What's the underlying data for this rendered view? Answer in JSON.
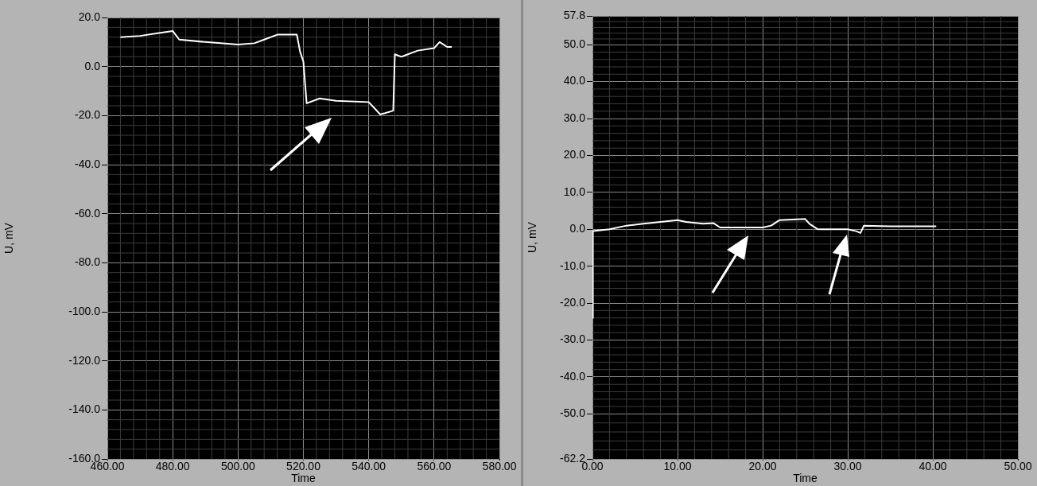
{
  "chart_data": [
    {
      "type": "line",
      "xlabel": "Time",
      "ylabel": "U, mV",
      "grid": true,
      "xlim": [
        460,
        580
      ],
      "ylim": [
        -160,
        20
      ],
      "xticks": [
        {
          "value": 460,
          "label": "460.00"
        },
        {
          "value": 480,
          "label": "480.00"
        },
        {
          "value": 500,
          "label": "500.00"
        },
        {
          "value": 520,
          "label": "520.00"
        },
        {
          "value": 540,
          "label": "540.00"
        },
        {
          "value": 560,
          "label": "560.00"
        },
        {
          "value": 580,
          "label": "580.00"
        }
      ],
      "yticks": [
        {
          "value": 20,
          "label": "20.0"
        },
        {
          "value": 0,
          "label": "0.0"
        },
        {
          "value": -20,
          "label": "-20.0"
        },
        {
          "value": -40,
          "label": "-40.0"
        },
        {
          "value": -60,
          "label": "-60.0"
        },
        {
          "value": -80,
          "label": "-80.0"
        },
        {
          "value": -100,
          "label": "-100.0"
        },
        {
          "value": -120,
          "label": "-120.0"
        },
        {
          "value": -140,
          "label": "-140.0"
        },
        {
          "value": -160,
          "label": "-160.0"
        }
      ],
      "series": [
        {
          "color": "#ffffff",
          "x": [
            464,
            470,
            475,
            480,
            482,
            490,
            500,
            505,
            508,
            512,
            518,
            519,
            520,
            521,
            525,
            530,
            540,
            543.5,
            545,
            547.5,
            548,
            550,
            555,
            560,
            561.7,
            564,
            565.4
          ],
          "values": [
            12,
            12.5,
            13.5,
            14.5,
            11,
            10,
            9,
            9.5,
            11,
            13,
            13,
            6,
            2,
            -15,
            -13,
            -14,
            -14.5,
            -19.5,
            -19,
            -18,
            5,
            4,
            6.5,
            7.5,
            10,
            8,
            8
          ]
        }
      ]
    },
    {
      "type": "line",
      "xlabel": "Time",
      "ylabel": "U, mV",
      "grid": true,
      "xlim": [
        0,
        50
      ],
      "ylim": [
        -62.2,
        57.8
      ],
      "xticks": [
        {
          "value": 0,
          "label": "0.00"
        },
        {
          "value": 10,
          "label": "10.00"
        },
        {
          "value": 20,
          "label": "20.00"
        },
        {
          "value": 30,
          "label": "30.00"
        },
        {
          "value": 40,
          "label": "40.00"
        },
        {
          "value": 50,
          "label": "50.00"
        }
      ],
      "yticks": [
        {
          "value": 57.8,
          "label": "57.8"
        },
        {
          "value": 50,
          "label": "50.0"
        },
        {
          "value": 40,
          "label": "40.0"
        },
        {
          "value": 30,
          "label": "30.0"
        },
        {
          "value": 20,
          "label": "20.0"
        },
        {
          "value": 10,
          "label": "10.0"
        },
        {
          "value": 0,
          "label": "0.0"
        },
        {
          "value": -10,
          "label": "-10.0"
        },
        {
          "value": -20,
          "label": "-20.0"
        },
        {
          "value": -30,
          "label": "-30.0"
        },
        {
          "value": -40,
          "label": "-40.0"
        },
        {
          "value": -50,
          "label": "-50.0"
        },
        {
          "value": -62.2,
          "label": "-62.2"
        }
      ],
      "series": [
        {
          "color": "#ffffff",
          "x": [
            0,
            0.05,
            2,
            4,
            6,
            8,
            10,
            11,
            13,
            14.2,
            15,
            17,
            20,
            21,
            22,
            25,
            25.5,
            26.5,
            30,
            31,
            31.5,
            31.9,
            35,
            40,
            40.4
          ],
          "values": [
            -24,
            -0.5,
            0,
            1,
            1.5,
            2,
            2.5,
            2,
            1.5,
            1.7,
            0.5,
            0.5,
            0.5,
            1,
            2.5,
            2.8,
            1.5,
            0,
            0,
            -0.5,
            -1,
            1,
            0.8,
            0.8,
            0.8
          ]
        }
      ]
    }
  ]
}
